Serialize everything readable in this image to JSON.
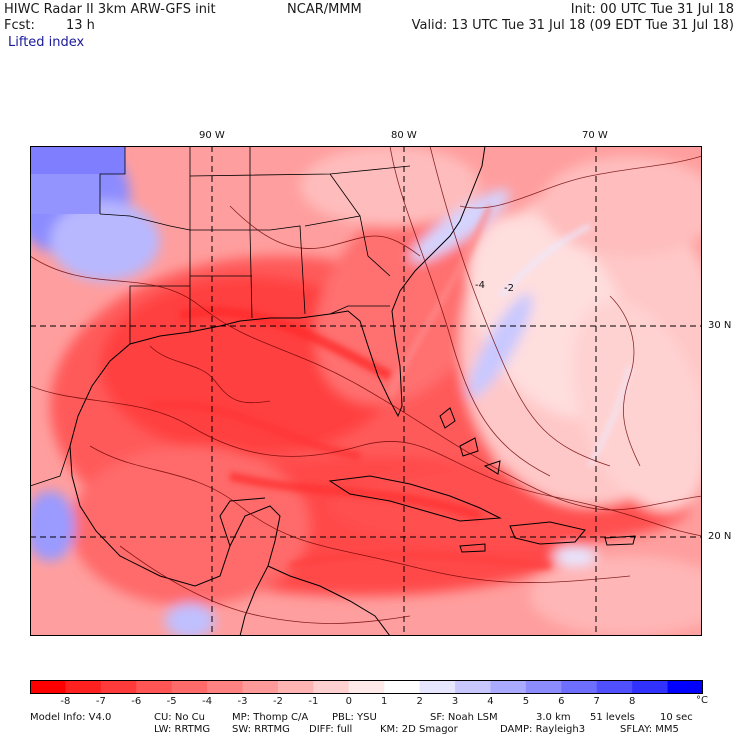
{
  "header": {
    "title": "HIWC Radar II 3km ARW-GFS init",
    "org": "NCAR/MMM",
    "init": "Init: 00 UTC Tue 31 Jul 18",
    "fcst_label": "Fcst:",
    "fcst_value": "13 h",
    "valid": "Valid: 13 UTC Tue 31 Jul 18 (09 EDT Tue 31 Jul 18)",
    "field": "Lifted index"
  },
  "axes": {
    "lon_labels": [
      "90 W",
      "80 W",
      "70 W"
    ],
    "lat_labels": [
      "30 N",
      "20 N"
    ]
  },
  "map_contour_labels": [
    "-4",
    "-2"
  ],
  "colorbar": {
    "ticks": [
      "-8",
      "-7",
      "-6",
      "-5",
      "-4",
      "-3",
      "-2",
      "-1",
      "0",
      "1",
      "2",
      "3",
      "4",
      "5",
      "6",
      "7",
      "8"
    ],
    "unit": "°C",
    "colors": [
      "#ff0000",
      "#ff2020",
      "#ff3a3a",
      "#ff5555",
      "#ff6b6b",
      "#ff8282",
      "#ff9a9a",
      "#ffb4b4",
      "#ffd0d0",
      "#ffeaea",
      "#ffffff",
      "#e6e6ff",
      "#c8c8ff",
      "#aaaaff",
      "#8c8cff",
      "#6e6eff",
      "#5050ff",
      "#3232ff",
      "#0000ff"
    ]
  },
  "footer": {
    "line1": [
      "Model Info: V4.0",
      "CU: No Cu",
      "MP: Thomp C/A",
      "PBL: YSU",
      "SF: Noah LSM",
      "3.0 km",
      "51 levels",
      "10 sec"
    ],
    "line2": [
      "LW: RRTMG",
      "SW: RRTMG",
      "DIFF: full",
      "KM: 2D Smagor",
      "DAMP: Rayleigh3",
      "SFLAY: MM5"
    ]
  }
}
